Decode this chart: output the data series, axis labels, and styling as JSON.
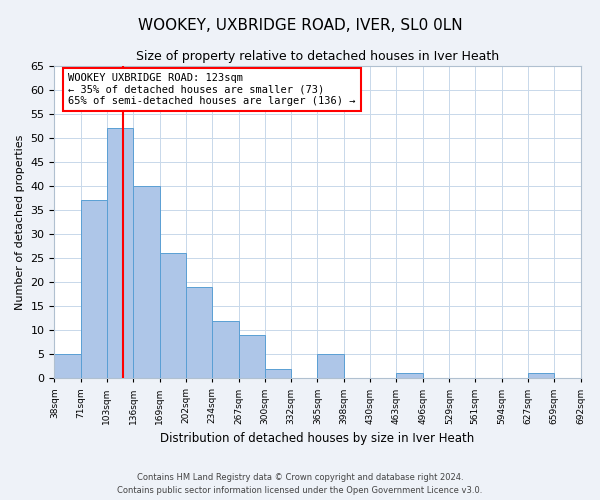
{
  "title": "WOOKEY, UXBRIDGE ROAD, IVER, SL0 0LN",
  "subtitle": "Size of property relative to detached houses in Iver Heath",
  "xlabel": "Distribution of detached houses by size in Iver Heath",
  "ylabel": "Number of detached properties",
  "bar_color": "#aec6e8",
  "bar_edge_color": "#5a9fd4",
  "vline_x": 123,
  "vline_color": "red",
  "annotation_text": "WOOKEY UXBRIDGE ROAD: 123sqm\n← 35% of detached houses are smaller (73)\n65% of semi-detached houses are larger (136) →",
  "annotation_box_edge_color": "red",
  "bin_edges": [
    38,
    71,
    103,
    136,
    169,
    202,
    234,
    267,
    300,
    332,
    365,
    398,
    430,
    463,
    496,
    529,
    561,
    594,
    627,
    659,
    692
  ],
  "bar_heights": [
    5,
    37,
    52,
    40,
    26,
    19,
    12,
    9,
    2,
    0,
    5,
    0,
    0,
    1,
    0,
    0,
    0,
    0,
    1,
    0
  ],
  "ylim": [
    0,
    65
  ],
  "yticks": [
    0,
    5,
    10,
    15,
    20,
    25,
    30,
    35,
    40,
    45,
    50,
    55,
    60,
    65
  ],
  "footer_text": "Contains HM Land Registry data © Crown copyright and database right 2024.\nContains public sector information licensed under the Open Government Licence v3.0.",
  "bg_color": "#eef2f8",
  "plot_bg_color": "#ffffff",
  "grid_color": "#c8d8ea"
}
